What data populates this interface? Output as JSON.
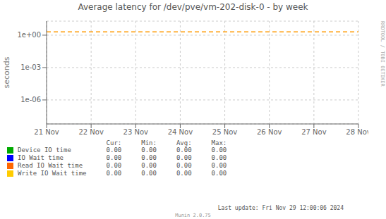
{
  "chart_data": {
    "type": "line",
    "title": "Average latency for /dev/pve/vm-202-disk-0 - by week",
    "ylabel": "seconds",
    "categories": [
      "21 Nov",
      "22 Nov",
      "23 Nov",
      "24 Nov",
      "25 Nov",
      "26 Nov",
      "27 Nov",
      "28 Nov"
    ],
    "series": [
      {
        "name": "Device IO time",
        "color": "#00aa00",
        "values": [
          null,
          null,
          null,
          null,
          null,
          null,
          null,
          null
        ],
        "stats": [
          0,
          0,
          0,
          0
        ],
        "stat_labels": [
          "0.00",
          "0.00",
          "0.00",
          "0.00"
        ]
      },
      {
        "name": "IO Wait time",
        "color": "#0000ff",
        "values": [
          null,
          null,
          null,
          null,
          null,
          null,
          null,
          null
        ],
        "stats": [
          0,
          0,
          0,
          0
        ],
        "stat_labels": [
          "0.00",
          "0.00",
          "0.00",
          "0.00"
        ]
      },
      {
        "name": "Read IO Wait time",
        "color": "#ff6600",
        "values": [
          null,
          null,
          null,
          null,
          null,
          null,
          null,
          null
        ],
        "stats": [
          0,
          0,
          0,
          0
        ],
        "stat_labels": [
          "0.00",
          "0.00",
          "0.00",
          "0.00"
        ]
      },
      {
        "name": "Write IO Wait time",
        "color": "#ffcc00",
        "values": [
          null,
          null,
          null,
          null,
          null,
          null,
          null,
          null
        ],
        "stats": [
          0,
          0,
          0,
          0
        ],
        "stat_labels": [
          "0.00",
          "0.00",
          "0.00",
          "0.00"
        ]
      }
    ],
    "stat_headers": [
      "Cur:",
      "Min:",
      "Avg:",
      "Max:"
    ],
    "log": "y",
    "ylim": [
      6e-09,
      20
    ],
    "yticks": [
      {
        "value": 1e-06,
        "label": "1e-06"
      },
      {
        "value": 0.001,
        "label": "1e-03"
      },
      {
        "value": 1,
        "label": "1e+00"
      }
    ],
    "grid": true,
    "legend": "bottom",
    "hlines": [
      {
        "value": 2.0,
        "color": "#ff9900",
        "line_style": "dashed"
      }
    ],
    "watermark": "RRDTOOL / TOBI OETIKER",
    "last_update": "Last update: Fri Nov 29 12:00:06 2024",
    "footer": "Munin 2.0.75"
  }
}
